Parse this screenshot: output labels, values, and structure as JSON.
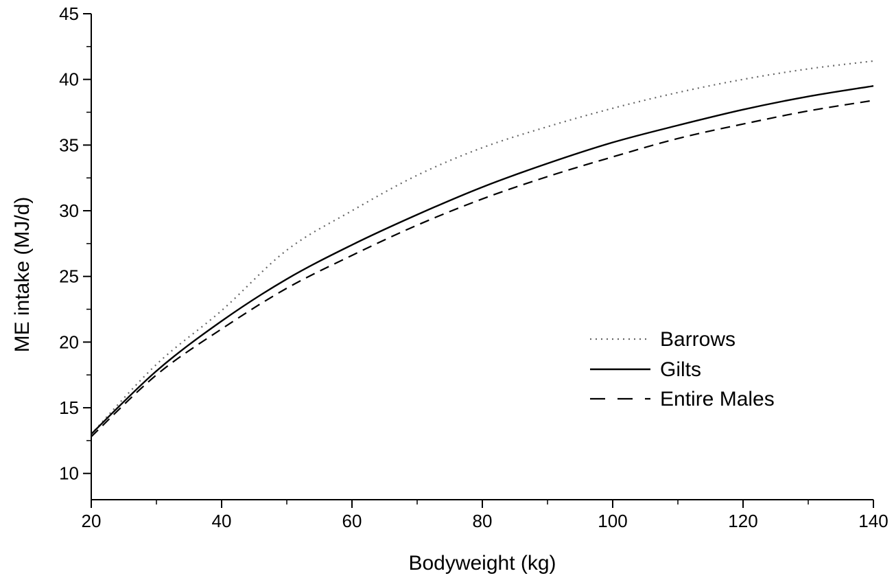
{
  "chart_data": {
    "type": "line",
    "title": "",
    "xlabel": "Bodyweight (kg)",
    "ylabel": "ME intake (MJ/d)",
    "xlim": [
      20,
      140
    ],
    "ylim": [
      8,
      45
    ],
    "x_ticks": [
      20,
      40,
      60,
      80,
      100,
      120,
      140
    ],
    "y_ticks": [
      10,
      15,
      20,
      25,
      30,
      35,
      40,
      45
    ],
    "x_tick_labels": [
      "20",
      "40",
      "60",
      "80",
      "100",
      "120",
      "140"
    ],
    "y_tick_labels": [
      "10",
      "15",
      "20",
      "25",
      "30",
      "35",
      "40",
      "45"
    ],
    "grid": false,
    "legend_position": "right-center",
    "x": [
      20,
      30,
      40,
      50,
      60,
      70,
      80,
      90,
      100,
      110,
      120,
      130,
      140
    ],
    "series": [
      {
        "name": "Barrows",
        "style": "dotted",
        "color": "#666666",
        "values": [
          13.0,
          18.3,
          22.4,
          27.0,
          30.0,
          32.7,
          34.8,
          36.4,
          37.8,
          39.0,
          40.0,
          40.8,
          41.4
        ]
      },
      {
        "name": "Gilts",
        "style": "solid",
        "color": "#000000",
        "values": [
          13.0,
          17.8,
          21.6,
          24.8,
          27.4,
          29.7,
          31.8,
          33.6,
          35.2,
          36.5,
          37.7,
          38.7,
          39.5
        ]
      },
      {
        "name": "Entire Males",
        "style": "dashed",
        "color": "#000000",
        "values": [
          12.8,
          17.5,
          21.0,
          24.1,
          26.6,
          28.9,
          30.9,
          32.6,
          34.1,
          35.5,
          36.6,
          37.6,
          38.4
        ]
      }
    ]
  }
}
